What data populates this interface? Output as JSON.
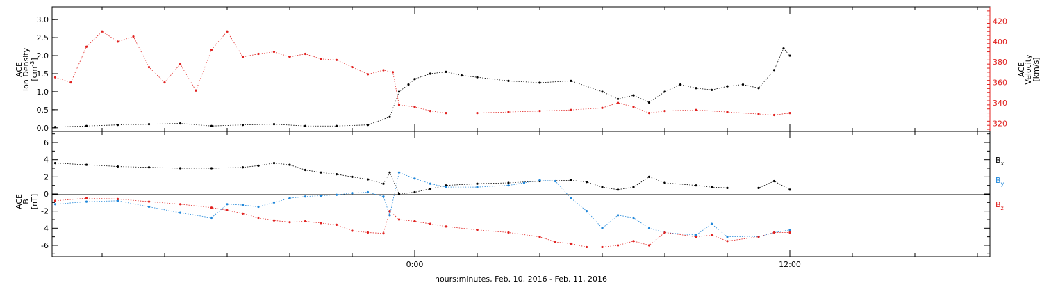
{
  "chart_data": [
    {
      "type": "scatter",
      "panel": "top",
      "ylabel_left": {
        "line1": "ACE",
        "line2": "Ion Density",
        "line3": "[cm",
        "line3_sup": "-3",
        "line3_end": "]"
      },
      "ylabel_right": {
        "line1": "ACE",
        "line2": "Velocity",
        "line3": "[km/s]"
      },
      "ylim_left": [
        -0.1,
        3.35
      ],
      "yticks_left": [
        0.0,
        0.5,
        1.0,
        1.5,
        2.0,
        2.5,
        3.0
      ],
      "yticklabels_left": [
        "0.0",
        "0.5",
        "1.0",
        "1.5",
        "2.0",
        "2.5",
        "3.0"
      ],
      "ylim_right": [
        312,
        434
      ],
      "yticks_right": [
        320,
        340,
        360,
        380,
        400,
        420
      ],
      "yticklabels_right": [
        "320",
        "340",
        "360",
        "380",
        "400",
        "420"
      ],
      "series": [
        {
          "color": "#000000",
          "axis": "left",
          "x": [
            -11.5,
            -10.5,
            -9.5,
            -8.5,
            -7.5,
            -6.5,
            -5.5,
            -4.5,
            -3.5,
            -2.5,
            -1.5,
            -0.8,
            -0.5,
            -0.2,
            0.0,
            0.5,
            1.0,
            1.5,
            2.0,
            3.0,
            4.0,
            5.0,
            6.0,
            6.5,
            7.0,
            7.5,
            8.0,
            8.5,
            9.0,
            9.5,
            10.0,
            10.5,
            11.0,
            11.5,
            11.8,
            12.0
          ],
          "y": [
            0.02,
            0.05,
            0.08,
            0.1,
            0.12,
            0.05,
            0.08,
            0.1,
            0.05,
            0.05,
            0.08,
            0.3,
            1.0,
            1.2,
            1.35,
            1.5,
            1.55,
            1.45,
            1.4,
            1.3,
            1.25,
            1.3,
            1.0,
            0.8,
            0.9,
            0.7,
            1.0,
            1.2,
            1.1,
            1.05,
            1.15,
            1.2,
            1.1,
            1.6,
            2.2,
            2.0
          ]
        },
        {
          "color": "#e0211f",
          "axis": "right",
          "x": [
            -11.5,
            -11.0,
            -10.5,
            -10.0,
            -9.5,
            -9.0,
            -8.5,
            -8.0,
            -7.5,
            -7.0,
            -6.5,
            -6.0,
            -5.5,
            -5.0,
            -4.5,
            -4.0,
            -3.5,
            -3.0,
            -2.5,
            -2.0,
            -1.5,
            -1.0,
            -0.7,
            -0.5,
            0.0,
            0.5,
            1.0,
            2.0,
            3.0,
            4.0,
            5.0,
            6.0,
            6.5,
            7.0,
            7.5,
            8.0,
            9.0,
            10.0,
            11.0,
            11.5,
            12.0
          ],
          "y": [
            365,
            360,
            395,
            410,
            400,
            405,
            375,
            360,
            378,
            352,
            392,
            410,
            385,
            388,
            390,
            385,
            388,
            383,
            382,
            375,
            368,
            372,
            370,
            338,
            336,
            332,
            330,
            330,
            331,
            332,
            333,
            335,
            340,
            336,
            330,
            332,
            333,
            331,
            329,
            328,
            330
          ]
        }
      ]
    },
    {
      "type": "scatter",
      "panel": "bottom",
      "ylabel": {
        "line1": "ACE",
        "line2": "B",
        "line3": "[nT]"
      },
      "ylim": [
        -7.3,
        7.3
      ],
      "yticks": [
        -6,
        -4,
        -2,
        0,
        2,
        4,
        6
      ],
      "yticklabels": [
        "-6",
        "-4",
        "-2",
        "0",
        "2",
        "4",
        "6"
      ],
      "zero_line": true,
      "series": [
        {
          "name": "B",
          "sub": "x",
          "color": "#000000",
          "x": [
            -11.5,
            -10.5,
            -9.5,
            -8.5,
            -7.5,
            -6.5,
            -5.5,
            -5.0,
            -4.5,
            -4.0,
            -3.5,
            -3.0,
            -2.5,
            -2.0,
            -1.5,
            -1.0,
            -0.8,
            -0.5,
            0.0,
            0.5,
            1.0,
            2.0,
            3.0,
            4.0,
            5.0,
            5.5,
            6.0,
            6.5,
            7.0,
            7.5,
            8.0,
            9.0,
            9.5,
            10.0,
            11.0,
            11.5,
            12.0
          ],
          "y": [
            3.6,
            3.4,
            3.2,
            3.1,
            3.0,
            3.0,
            3.1,
            3.3,
            3.6,
            3.4,
            2.8,
            2.5,
            2.3,
            2.0,
            1.7,
            1.2,
            2.5,
            0.0,
            0.2,
            0.6,
            1.0,
            1.2,
            1.3,
            1.5,
            1.6,
            1.4,
            0.8,
            0.5,
            0.8,
            2.0,
            1.3,
            1.0,
            0.8,
            0.7,
            0.7,
            1.5,
            0.5
          ]
        },
        {
          "name": "B",
          "sub": "y",
          "color": "#1f86d9",
          "x": [
            -11.5,
            -10.5,
            -9.5,
            -8.5,
            -7.5,
            -6.5,
            -6.0,
            -5.5,
            -5.0,
            -4.5,
            -4.0,
            -3.5,
            -3.0,
            -2.5,
            -2.0,
            -1.5,
            -1.0,
            -0.8,
            -0.5,
            0.0,
            0.5,
            1.0,
            2.0,
            3.0,
            3.5,
            4.0,
            4.5,
            5.0,
            5.5,
            6.0,
            6.5,
            7.0,
            7.5,
            8.0,
            9.0,
            9.5,
            10.0,
            11.0,
            11.5,
            12.0
          ],
          "y": [
            -1.2,
            -0.9,
            -0.8,
            -1.5,
            -2.2,
            -2.8,
            -1.2,
            -1.3,
            -1.5,
            -1.0,
            -0.5,
            -0.3,
            -0.2,
            -0.1,
            0.1,
            0.2,
            -0.3,
            -2.5,
            2.5,
            1.8,
            1.2,
            0.8,
            0.8,
            1.0,
            1.3,
            1.6,
            1.5,
            -0.5,
            -2.0,
            -4.0,
            -2.5,
            -2.8,
            -4.0,
            -4.5,
            -4.8,
            -3.5,
            -5.0,
            -5.0,
            -4.5,
            -4.2
          ]
        },
        {
          "name": "B",
          "sub": "z",
          "color": "#e0211f",
          "x": [
            -11.5,
            -10.5,
            -9.5,
            -8.5,
            -7.5,
            -6.5,
            -6.0,
            -5.5,
            -5.0,
            -4.5,
            -4.0,
            -3.5,
            -3.0,
            -2.5,
            -2.0,
            -1.5,
            -1.0,
            -0.8,
            -0.5,
            0.0,
            0.5,
            1.0,
            2.0,
            3.0,
            4.0,
            4.5,
            5.0,
            5.5,
            6.0,
            6.5,
            7.0,
            7.5,
            8.0,
            9.0,
            9.5,
            10.0,
            11.0,
            11.5,
            12.0
          ],
          "y": [
            -0.8,
            -0.5,
            -0.6,
            -0.9,
            -1.2,
            -1.6,
            -1.9,
            -2.3,
            -2.8,
            -3.1,
            -3.3,
            -3.2,
            -3.4,
            -3.6,
            -4.3,
            -4.5,
            -4.6,
            -2.0,
            -3.0,
            -3.2,
            -3.5,
            -3.8,
            -4.2,
            -4.5,
            -5.0,
            -5.6,
            -5.8,
            -6.2,
            -6.2,
            -6.0,
            -5.5,
            -6.0,
            -4.5,
            -5.0,
            -4.8,
            -5.5,
            -5.0,
            -4.5,
            -4.5
          ]
        }
      ]
    }
  ],
  "xaxis": {
    "xlabel": "hours:minutes, Feb. 10, 2016 - Feb. 11, 2016",
    "xlim": [
      -11.6,
      18.4
    ],
    "major_ticks": [
      0,
      12
    ],
    "major_labels": [
      "0:00",
      "12:00"
    ],
    "minor_ticks": [
      -10,
      -8,
      -6,
      -4,
      -2,
      2,
      4,
      6,
      8,
      10,
      14,
      16,
      18
    ]
  },
  "colors": {
    "density": "#000000",
    "velocity": "#e0211f",
    "bx": "#000000",
    "by": "#1f86d9",
    "bz": "#e0211f",
    "axis": "#000000"
  }
}
